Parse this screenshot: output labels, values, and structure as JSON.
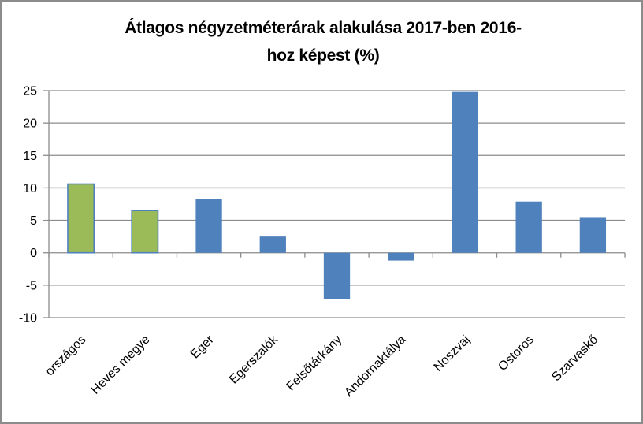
{
  "window": {
    "background": "#FFFFFF",
    "frame_border_color": "#8C8C8C"
  },
  "chart_data": {
    "type": "bar",
    "title": "Átlagos négyzetméterárak alakulása 2017-ben 2016-hoz képest (%)",
    "title_lines": [
      "Átlagos négyzetméterárak alakulása 2017-ben 2016-",
      "hoz képest (%)"
    ],
    "categories": [
      "országos",
      "Heves megye",
      "Eger",
      "Egerszalók",
      "Felsőtárkány",
      "Andornaktálya",
      "Noszvaj",
      "Ostoros",
      "Szarvaskő"
    ],
    "values": [
      10.6,
      6.5,
      8.3,
      2.5,
      -7.2,
      -1.2,
      24.8,
      7.9,
      5.5
    ],
    "bar_colors": [
      "#9BBB59",
      "#9BBB59",
      "#4F81BD",
      "#4F81BD",
      "#4F81BD",
      "#4F81BD",
      "#4F81BD",
      "#4F81BD",
      "#4F81BD"
    ],
    "green_bar_border_color": "#4F81BD",
    "blue_color": "#4F81BD",
    "green_color": "#9BBB59",
    "xlabel": "",
    "ylabel": "",
    "ylim": [
      -10,
      25
    ],
    "ytick_step": 5,
    "yticks": [
      25,
      20,
      15,
      10,
      5,
      0,
      -5,
      -10
    ],
    "grid": true,
    "gridline_color": "#8C8C8C",
    "axis_color": "#8C8C8C",
    "tick_label_color": "#000000",
    "title_color": "#000000",
    "category_label_rotation_deg": 45,
    "legend": "none"
  }
}
